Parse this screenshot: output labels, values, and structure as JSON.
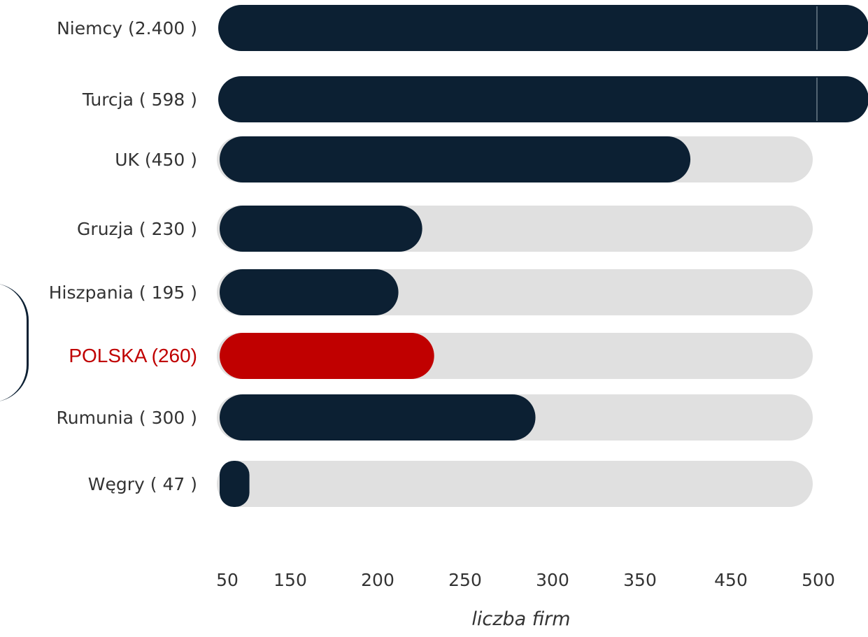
{
  "chart_data": {
    "type": "bar",
    "orientation": "horizontal",
    "categories": [
      "Niemcy (2.400 )",
      "Turcja ( 598 )",
      "UK (450 )",
      "Gruzja ( 230 )",
      "Hiszpania ( 195 )",
      "POLSKA (260)",
      "Rumunia ( 300 )",
      "Węgry ( 47 )"
    ],
    "values": [
      2400,
      598,
      450,
      230,
      195,
      260,
      300,
      47
    ],
    "fill_fraction": [
      1.0,
      1.0,
      0.79,
      0.34,
      0.3,
      0.36,
      0.53,
      0.05
    ],
    "bar_colors": [
      "#0c2033",
      "#0c2033",
      "#0c2033",
      "#0c2033",
      "#0c2033",
      "#c00000",
      "#0c2033",
      "#0c2033"
    ],
    "label_colors": [
      "#333333",
      "#333333",
      "#333333",
      "#333333",
      "#333333",
      "#c00000",
      "#333333",
      "#333333"
    ],
    "track_color": "#e0e0e0",
    "x_tick_labels": [
      "50",
      "150",
      "200",
      "250",
      "300",
      "350",
      "450",
      "500"
    ],
    "xlabel": "liczba firm",
    "ylabel": "",
    "title": "",
    "grid": false,
    "legend": "none"
  }
}
